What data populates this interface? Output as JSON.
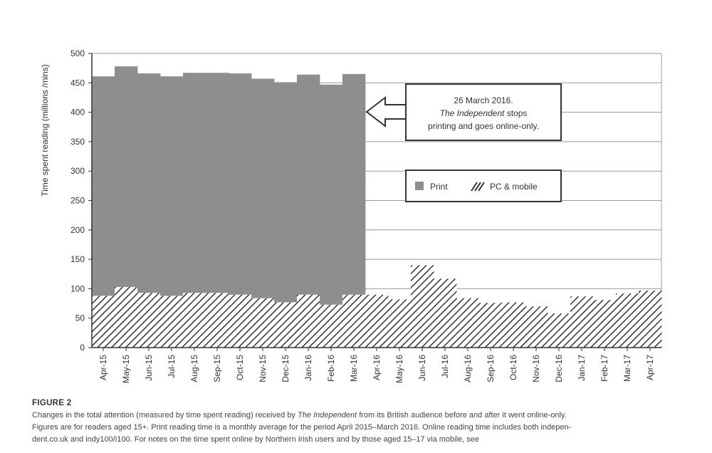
{
  "chart_data": {
    "type": "bar",
    "stacked": true,
    "ylabel": "Time spent reading (millions /mins)",
    "ylim": [
      0,
      500
    ],
    "yticks": [
      0,
      50,
      100,
      150,
      200,
      250,
      300,
      350,
      400,
      450,
      500
    ],
    "grid": true,
    "legend_position": "right-middle",
    "categories": [
      "Apr-15",
      "May-15",
      "Jun-15",
      "Jul-15",
      "Aug-15",
      "Sep-15",
      "Oct-15",
      "Nov-15",
      "Dec-15",
      "Jan-16",
      "Feb-16",
      "Mar-16",
      "Apr-16",
      "May-16",
      "Jun-16",
      "Jul-16",
      "Aug-16",
      "Sep-16",
      "Oct-16",
      "Nov-16",
      "Dec-16",
      "Jan-17",
      "Feb-17",
      "Mar-17",
      "Apr-17"
    ],
    "series": [
      {
        "name": "PC & mobile",
        "pattern": "hatch",
        "color": "#333333",
        "values": [
          88,
          103,
          93,
          88,
          93,
          93,
          90,
          84,
          77,
          90,
          73,
          90,
          90,
          82,
          140,
          117,
          84,
          76,
          77,
          70,
          58,
          87,
          81,
          92,
          97
        ]
      },
      {
        "name": "Print",
        "pattern": "solid",
        "color": "#8e8e90",
        "values": [
          373,
          375,
          373,
          373,
          374,
          374,
          376,
          373,
          374,
          374,
          374,
          375,
          null,
          null,
          null,
          null,
          null,
          null,
          null,
          null,
          null,
          null,
          null,
          null,
          null
        ]
      }
    ],
    "annotation": {
      "line1": "26 March 2016.",
      "line2_italic": "The Independent",
      "line2_rest": " stops",
      "line3": "printing and goes online-only.",
      "points_to_value": 400
    }
  },
  "caption": {
    "figure_label": "FIGURE 2",
    "line1_a": "Changes in the total attention (measured by time spent reading) received by ",
    "line1_italic": "The Independent",
    "line1_b": " from its British audience before and after it went online-only.",
    "line2": "Figures are for readers aged 15+. Print reading time is a monthly average for the period April 2015–March 2016. Online reading time includes both indepen-",
    "line3": "dent.co.uk and indy100/i100. For notes on the time spent online by Northern Irish users and by those aged 15–17 via mobile, see"
  }
}
